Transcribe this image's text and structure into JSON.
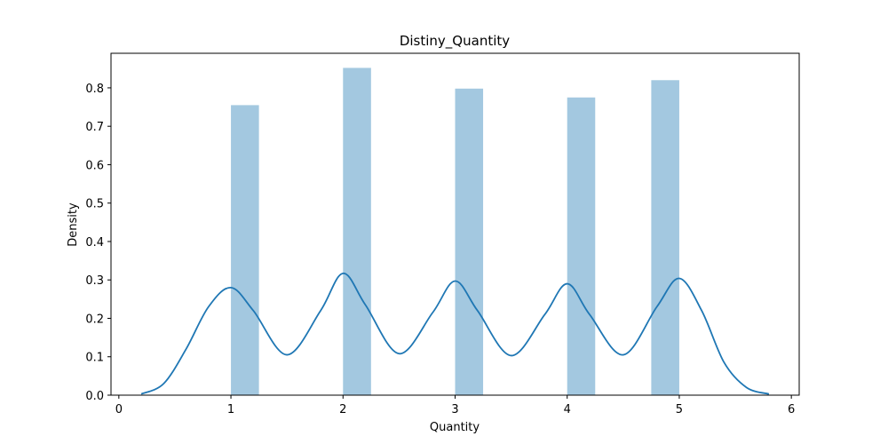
{
  "chart_data": {
    "type": "bar",
    "title": "Distiny_Quantity",
    "xlabel": "Quantity",
    "ylabel": "Density",
    "xlim": [
      -0.07,
      6.07
    ],
    "ylim": [
      0,
      0.89
    ],
    "xticks": [
      "0",
      "1",
      "2",
      "3",
      "4",
      "5",
      "6"
    ],
    "yticks": [
      "0.0",
      "0.1",
      "0.2",
      "0.3",
      "0.4",
      "0.5",
      "0.6",
      "0.7",
      "0.8"
    ],
    "grid": false,
    "bar_color": "#a3c8e0",
    "line_color": "#1f77b4",
    "histogram": {
      "bins": [
        {
          "x0": 1.0,
          "x1": 1.25,
          "value": 0.755
        },
        {
          "x0": 2.0,
          "x1": 2.25,
          "value": 0.852
        },
        {
          "x0": 3.0,
          "x1": 3.25,
          "value": 0.798
        },
        {
          "x0": 4.0,
          "x1": 4.25,
          "value": 0.775
        },
        {
          "x0": 4.75,
          "x1": 5.0,
          "value": 0.82
        }
      ]
    },
    "kde": {
      "name": "",
      "x": [
        0.2,
        0.4,
        0.6,
        0.8,
        1.0,
        1.2,
        1.5,
        1.8,
        2.0,
        2.2,
        2.5,
        2.8,
        3.0,
        3.2,
        3.5,
        3.8,
        4.0,
        4.2,
        4.5,
        4.8,
        5.0,
        5.2,
        5.4,
        5.6,
        5.8
      ],
      "y": [
        0.003,
        0.03,
        0.12,
        0.23,
        0.28,
        0.22,
        0.105,
        0.22,
        0.317,
        0.235,
        0.108,
        0.215,
        0.297,
        0.22,
        0.103,
        0.21,
        0.29,
        0.21,
        0.105,
        0.23,
        0.304,
        0.22,
        0.085,
        0.02,
        0.003
      ]
    }
  }
}
